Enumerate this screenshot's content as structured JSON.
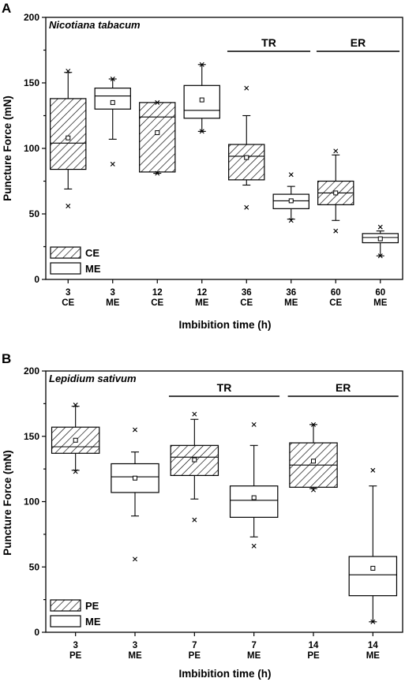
{
  "chart_data": [
    {
      "type": "box",
      "panel_label": "A",
      "title": "Nicotiana tabacum",
      "xlabel": "Imbibition time (h)",
      "ylabel": "Puncture Force (mN)",
      "ylim": [
        0,
        200
      ],
      "yticks": [
        0,
        50,
        100,
        150,
        200
      ],
      "grid": false,
      "legend": {
        "position": "bottom-left",
        "entries": [
          {
            "label": "CE",
            "pattern": "hatched"
          },
          {
            "label": "ME",
            "pattern": "open"
          }
        ]
      },
      "group_labels": [
        {
          "label": "TR",
          "from": 4,
          "to": 5
        },
        {
          "label": "ER",
          "from": 6,
          "to": 7
        }
      ],
      "categories": [
        {
          "time": "3",
          "type": "CE",
          "pattern": "hatched",
          "q1": 84,
          "median": 104,
          "q3": 138,
          "mean": 108,
          "whisker_low": 69,
          "whisker_high": 158,
          "outliers": [
            56,
            159
          ]
        },
        {
          "time": "3",
          "type": "ME",
          "pattern": "open",
          "q1": 130,
          "median": 140,
          "q3": 146,
          "mean": 135,
          "whisker_low": 107,
          "whisker_high": 153,
          "outliers": [
            88,
            153
          ]
        },
        {
          "time": "12",
          "type": "CE",
          "pattern": "hatched",
          "q1": 82,
          "median": 124,
          "q3": 135,
          "mean": 112,
          "whisker_low": 81,
          "whisker_high": 135,
          "outliers": [
            81,
            135
          ]
        },
        {
          "time": "12",
          "type": "ME",
          "pattern": "open",
          "q1": 123,
          "median": 129,
          "q3": 148,
          "mean": 137,
          "whisker_low": 113,
          "whisker_high": 164,
          "outliers": [
            113,
            164
          ]
        },
        {
          "time": "36",
          "type": "CE",
          "pattern": "hatched",
          "q1": 76,
          "median": 94,
          "q3": 103,
          "mean": 93,
          "whisker_low": 72,
          "whisker_high": 125,
          "outliers": [
            55,
            146
          ]
        },
        {
          "time": "36",
          "type": "ME",
          "pattern": "open",
          "q1": 54,
          "median": 60,
          "q3": 65,
          "mean": 60,
          "whisker_low": 46,
          "whisker_high": 71,
          "outliers": [
            45,
            80
          ]
        },
        {
          "time": "60",
          "type": "CE",
          "pattern": "hatched",
          "q1": 57,
          "median": 66,
          "q3": 75,
          "mean": 66,
          "whisker_low": 45,
          "whisker_high": 95,
          "outliers": [
            37,
            98
          ]
        },
        {
          "time": "60",
          "type": "ME",
          "pattern": "open",
          "q1": 28,
          "median": 32,
          "q3": 35,
          "mean": 31,
          "whisker_low": 18,
          "whisker_high": 37,
          "outliers": [
            18,
            40
          ]
        }
      ]
    },
    {
      "type": "box",
      "panel_label": "B",
      "title": "Lepidium sativum",
      "xlabel": "Imbibition time (h)",
      "ylabel": "Puncture Force (mN)",
      "ylim": [
        0,
        200
      ],
      "yticks": [
        0,
        50,
        100,
        150,
        200
      ],
      "grid": false,
      "legend": {
        "position": "bottom-left",
        "entries": [
          {
            "label": "PE",
            "pattern": "hatched"
          },
          {
            "label": "ME",
            "pattern": "open"
          }
        ]
      },
      "group_labels": [
        {
          "label": "TR",
          "from": 2,
          "to": 3
        },
        {
          "label": "ER",
          "from": 4,
          "to": 5
        }
      ],
      "categories": [
        {
          "time": "3",
          "type": "PE",
          "pattern": "hatched",
          "q1": 137,
          "median": 142,
          "q3": 157,
          "mean": 147,
          "whisker_low": 124,
          "whisker_high": 173,
          "outliers": [
            123,
            174
          ]
        },
        {
          "time": "3",
          "type": "ME",
          "pattern": "open",
          "q1": 107,
          "median": 119,
          "q3": 129,
          "mean": 118,
          "whisker_low": 89,
          "whisker_high": 138,
          "outliers": [
            56,
            155
          ]
        },
        {
          "time": "7",
          "type": "PE",
          "pattern": "hatched",
          "q1": 120,
          "median": 134,
          "q3": 143,
          "mean": 132,
          "whisker_low": 102,
          "whisker_high": 163,
          "outliers": [
            86,
            167
          ]
        },
        {
          "time": "7",
          "type": "ME",
          "pattern": "open",
          "q1": 88,
          "median": 101,
          "q3": 112,
          "mean": 103,
          "whisker_low": 73,
          "whisker_high": 143,
          "outliers": [
            66,
            159
          ]
        },
        {
          "time": "14",
          "type": "PE",
          "pattern": "hatched",
          "q1": 111,
          "median": 128,
          "q3": 145,
          "mean": 131,
          "whisker_low": 110,
          "whisker_high": 159,
          "outliers": [
            109,
            159
          ]
        },
        {
          "time": "14",
          "type": "ME",
          "pattern": "open",
          "q1": 28,
          "median": 44,
          "q3": 58,
          "mean": 49,
          "whisker_low": 8,
          "whisker_high": 112,
          "outliers": [
            8,
            124
          ]
        }
      ]
    }
  ]
}
